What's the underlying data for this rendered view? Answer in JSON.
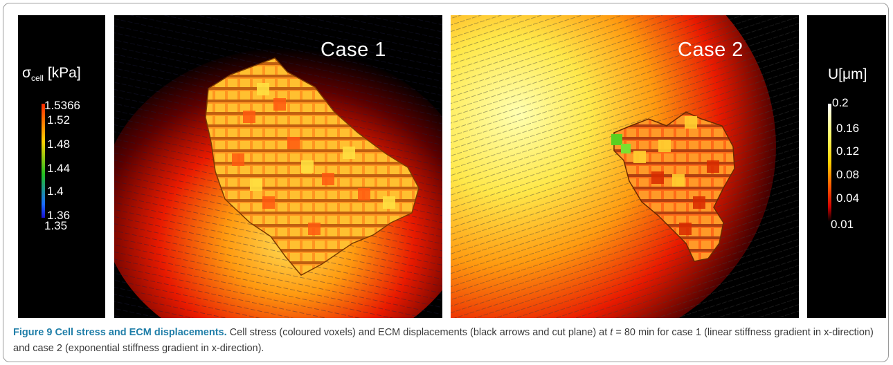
{
  "figure": {
    "label": "Figure 9",
    "title": "Cell stress and ECM displacements.",
    "caption_part1": "Cell stress (coloured voxels) and ECM displacements (black arrows and cut plane) at ",
    "caption_var": "t",
    "caption_part2": " = 80 min for case 1 (linear stiffness gradient in x-direction) and case 2 (exponential stiffness gradient in x-direction)."
  },
  "left_colorbar": {
    "symbol": "σ",
    "subscript": "cell",
    "unit": "[kPa]",
    "ticks": [
      "1.5366",
      "1.52",
      "1.48",
      "1.44",
      "1.4",
      "1.36",
      "1.35"
    ],
    "colors": [
      "#ff2a00",
      "#ffd000",
      "#22c022",
      "#1a6dff",
      "#1a10d0"
    ]
  },
  "right_colorbar": {
    "title": "U[μm]",
    "ticks": [
      "0.2",
      "0.16",
      "0.12",
      "0.08",
      "0.04",
      "0.01"
    ],
    "colors": [
      "#ffffff",
      "#ffff70",
      "#ffd000",
      "#ff5a00",
      "#d00000",
      "#000000"
    ]
  },
  "panels": {
    "case1_title": "Case 1",
    "case2_title": "Case 2"
  }
}
